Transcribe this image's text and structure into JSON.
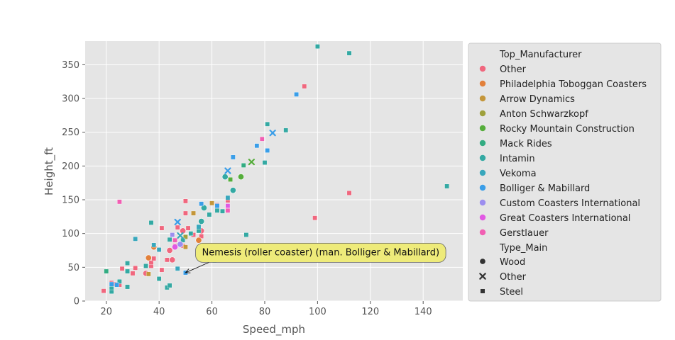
{
  "chart_data": {
    "type": "scatter",
    "xlabel": "Speed_mph",
    "ylabel": "Height_ft",
    "xlim": [
      12,
      155
    ],
    "ylim": [
      0,
      385
    ],
    "xticks": [
      20,
      40,
      60,
      80,
      100,
      120,
      140
    ],
    "yticks": [
      0,
      50,
      100,
      150,
      200,
      250,
      300,
      350
    ],
    "grid": true,
    "style": "ggplot",
    "legend": {
      "placement": "outside-right",
      "hue_title": "Top_Manufacturer",
      "hue": [
        {
          "name": "Other",
          "color": "#f0677e"
        },
        {
          "name": "Philadelphia Toboggan Coasters",
          "color": "#e2803a"
        },
        {
          "name": "Arrow Dynamics",
          "color": "#c4963a"
        },
        {
          "name": "Anton Schwarzkopf",
          "color": "#9ea03b"
        },
        {
          "name": "Rocky Mountain Construction",
          "color": "#55ad3b"
        },
        {
          "name": "Mack Rides",
          "color": "#33ac82"
        },
        {
          "name": "Intamin",
          "color": "#34a9a3"
        },
        {
          "name": "Vekoma",
          "color": "#38a7bc"
        },
        {
          "name": "Bolliger & Mabillard",
          "color": "#3a9ee8"
        },
        {
          "name": "Custom Coasters International",
          "color": "#9c8eef"
        },
        {
          "name": "Great Coasters International",
          "color": "#e159e3"
        },
        {
          "name": "Gerstlauer",
          "color": "#f15fb3"
        }
      ],
      "style_title": "Type_Main",
      "style": [
        {
          "name": "Wood",
          "marker": "circle"
        },
        {
          "name": "Other",
          "marker": "x"
        },
        {
          "name": "Steel",
          "marker": "square"
        }
      ]
    },
    "annotation": {
      "text": "Nemesis (roller coaster) (man. Bolliger & Mabillard)",
      "point": [
        50.0,
        42.0
      ],
      "text_anchor_data": [
        60.0,
        72.0
      ]
    },
    "points": [
      [
        19,
        15,
        0,
        2
      ],
      [
        22,
        27,
        0,
        2
      ],
      [
        23,
        25,
        0,
        2
      ],
      [
        25,
        24,
        0,
        2
      ],
      [
        26,
        48,
        0,
        2
      ],
      [
        30,
        41,
        0,
        2
      ],
      [
        31,
        49,
        0,
        2
      ],
      [
        35,
        41,
        0,
        0
      ],
      [
        37,
        52,
        0,
        2
      ],
      [
        37,
        57,
        0,
        2
      ],
      [
        38,
        63,
        0,
        2
      ],
      [
        41,
        46,
        0,
        2
      ],
      [
        41,
        108,
        0,
        2
      ],
      [
        43,
        61,
        0,
        2
      ],
      [
        44,
        75,
        0,
        0
      ],
      [
        45,
        61,
        0,
        0
      ],
      [
        46,
        82,
        0,
        2
      ],
      [
        47,
        109,
        0,
        2
      ],
      [
        49,
        82,
        0,
        2
      ],
      [
        49,
        104,
        0,
        0
      ],
      [
        50,
        130,
        0,
        2
      ],
      [
        50,
        148,
        0,
        2
      ],
      [
        51,
        108,
        0,
        2
      ],
      [
        53,
        98,
        0,
        2
      ],
      [
        55,
        104,
        0,
        2
      ],
      [
        56,
        104,
        0,
        0
      ],
      [
        56,
        96,
        0,
        2
      ],
      [
        62,
        142,
        0,
        2
      ],
      [
        66,
        149,
        0,
        2
      ],
      [
        95,
        318,
        0,
        2
      ],
      [
        99,
        123,
        0,
        2
      ],
      [
        112,
        160,
        0,
        2
      ],
      [
        36,
        64,
        1,
        0
      ],
      [
        38,
        80,
        1,
        0
      ],
      [
        55,
        90,
        1,
        0
      ],
      [
        53,
        130,
        2,
        2
      ],
      [
        36,
        40,
        2,
        2
      ],
      [
        50,
        80,
        2,
        2
      ],
      [
        60,
        145,
        2,
        2
      ],
      [
        50,
        95,
        3,
        2
      ],
      [
        75,
        206,
        4,
        1
      ],
      [
        71,
        184,
        4,
        0
      ],
      [
        67,
        180,
        4,
        2
      ],
      [
        61,
        60,
        5,
        2
      ],
      [
        68,
        64,
        5,
        2
      ],
      [
        72,
        201,
        5,
        2
      ],
      [
        20,
        44,
        5,
        2
      ],
      [
        22,
        14,
        6,
        2
      ],
      [
        22,
        20,
        6,
        2
      ],
      [
        25,
        29,
        6,
        2
      ],
      [
        28,
        21,
        6,
        2
      ],
      [
        28,
        44,
        6,
        2
      ],
      [
        28,
        56,
        6,
        2
      ],
      [
        35,
        52,
        6,
        2
      ],
      [
        37,
        116,
        6,
        2
      ],
      [
        40,
        33,
        6,
        2
      ],
      [
        43,
        20,
        6,
        2
      ],
      [
        44,
        23,
        6,
        2
      ],
      [
        44,
        91,
        6,
        2
      ],
      [
        49,
        90,
        6,
        2
      ],
      [
        52,
        100,
        6,
        2
      ],
      [
        55,
        104,
        6,
        2
      ],
      [
        56,
        118,
        6,
        0
      ],
      [
        57,
        138,
        6,
        0
      ],
      [
        59,
        128,
        6,
        2
      ],
      [
        62,
        134,
        6,
        2
      ],
      [
        64,
        133,
        6,
        2
      ],
      [
        65,
        184,
        6,
        0
      ],
      [
        68,
        164,
        6,
        0
      ],
      [
        73,
        98,
        6,
        2
      ],
      [
        80,
        205,
        6,
        2
      ],
      [
        81,
        262,
        6,
        2
      ],
      [
        88,
        253,
        6,
        2
      ],
      [
        100,
        377,
        6,
        2
      ],
      [
        112,
        367,
        6,
        2
      ],
      [
        149,
        170,
        6,
        2
      ],
      [
        31,
        92,
        7,
        2
      ],
      [
        38,
        83,
        7,
        2
      ],
      [
        40,
        76,
        7,
        2
      ],
      [
        47,
        48,
        7,
        2
      ],
      [
        55,
        110,
        7,
        2
      ],
      [
        48,
        97,
        7,
        1
      ],
      [
        66,
        153,
        7,
        2
      ],
      [
        22,
        25,
        8,
        2
      ],
      [
        24,
        24,
        8,
        2
      ],
      [
        47,
        117,
        8,
        1
      ],
      [
        50,
        42,
        8,
        2
      ],
      [
        56,
        144,
        8,
        2
      ],
      [
        62,
        141,
        8,
        2
      ],
      [
        66,
        193,
        8,
        1
      ],
      [
        68,
        213,
        8,
        2
      ],
      [
        77,
        230,
        8,
        2
      ],
      [
        81,
        223,
        8,
        2
      ],
      [
        83,
        249,
        8,
        1
      ],
      [
        92,
        306,
        8,
        2
      ],
      [
        45,
        98,
        9,
        2
      ],
      [
        48,
        84,
        9,
        0
      ],
      [
        46,
        80,
        10,
        0
      ],
      [
        66,
        141,
        10,
        2
      ],
      [
        25,
        147,
        11,
        2
      ],
      [
        46,
        90,
        11,
        2
      ],
      [
        66,
        134,
        11,
        2
      ],
      [
        79,
        240,
        11,
        2
      ]
    ]
  }
}
